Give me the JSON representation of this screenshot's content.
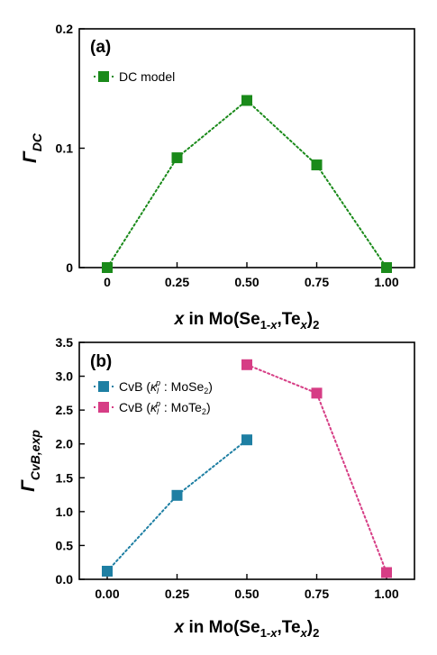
{
  "chart_data": [
    {
      "type": "line",
      "panel_label": "(a)",
      "x": [
        0,
        0.25,
        0.5,
        0.75,
        1.0
      ],
      "x_tick_labels": [
        "0",
        "0.25",
        "0.50",
        "0.75",
        "1.00"
      ],
      "xlim": [
        -0.1,
        1.1
      ],
      "ylim": [
        0,
        0.2
      ],
      "y_ticks": [
        0,
        0.1,
        0.2
      ],
      "y_tick_labels": [
        "0",
        "0.1",
        "0.2"
      ],
      "ylabel": {
        "main": "Γ",
        "sub": "DC"
      },
      "xlabel": {
        "var": "x",
        "t1": " in Mo(Se",
        "s1": "1-",
        "s1i": "x",
        "t2": ",Te",
        "s2": "x",
        "t3": ")",
        "s3": "2"
      },
      "series": [
        {
          "name": "DC model",
          "color": "#1a8a1a",
          "x": [
            0,
            0.25,
            0.5,
            0.75,
            1.0
          ],
          "values": [
            0.0,
            0.092,
            0.14,
            0.086,
            0.0
          ]
        }
      ],
      "legend_placement": "top-left",
      "grid": false
    },
    {
      "type": "line",
      "panel_label": "(b)",
      "x": [
        0,
        0.25,
        0.5,
        0.75,
        1.0
      ],
      "x_tick_labels": [
        "0.00",
        "0.25",
        "0.50",
        "0.75",
        "1.00"
      ],
      "xlim": [
        -0.1,
        1.1
      ],
      "ylim": [
        0,
        3.5
      ],
      "y_ticks": [
        0,
        0.5,
        1.0,
        1.5,
        2.0,
        2.5,
        3.0,
        3.5
      ],
      "y_tick_labels": [
        "0.0",
        "0.5",
        "1.0",
        "1.5",
        "2.0",
        "2.5",
        "3.0",
        "3.5"
      ],
      "ylabel": {
        "main": "Γ",
        "sub": "CvB,exp"
      },
      "xlabel": {
        "var": "x",
        "t1": " in Mo(Se",
        "s1": "1-",
        "s1i": "x",
        "t2": ",Te",
        "s2": "x",
        "t3": ")",
        "s3": "2"
      },
      "series": [
        {
          "name": "CvB (κlp : MoSe2)",
          "legend": {
            "a": "CvB (",
            "k": "κ",
            "ksub": "l",
            "ksup": "p",
            "b": " : MoSe",
            "bsub": "2",
            "c": ")"
          },
          "color": "#1e7fa3",
          "x": [
            0,
            0.25,
            0.5
          ],
          "values": [
            0.12,
            1.24,
            2.06
          ]
        },
        {
          "name": "CvB (κlp : MoTe2)",
          "legend": {
            "a": "CvB (",
            "k": "κ",
            "ksub": "l",
            "ksup": "p",
            "b": " : MoTe",
            "bsub": "2",
            "c": ")"
          },
          "color": "#d63d85",
          "x": [
            0.5,
            0.75,
            1.0
          ],
          "values": [
            3.17,
            2.75,
            0.1
          ]
        }
      ],
      "legend_placement": "top-left",
      "grid": false
    }
  ]
}
